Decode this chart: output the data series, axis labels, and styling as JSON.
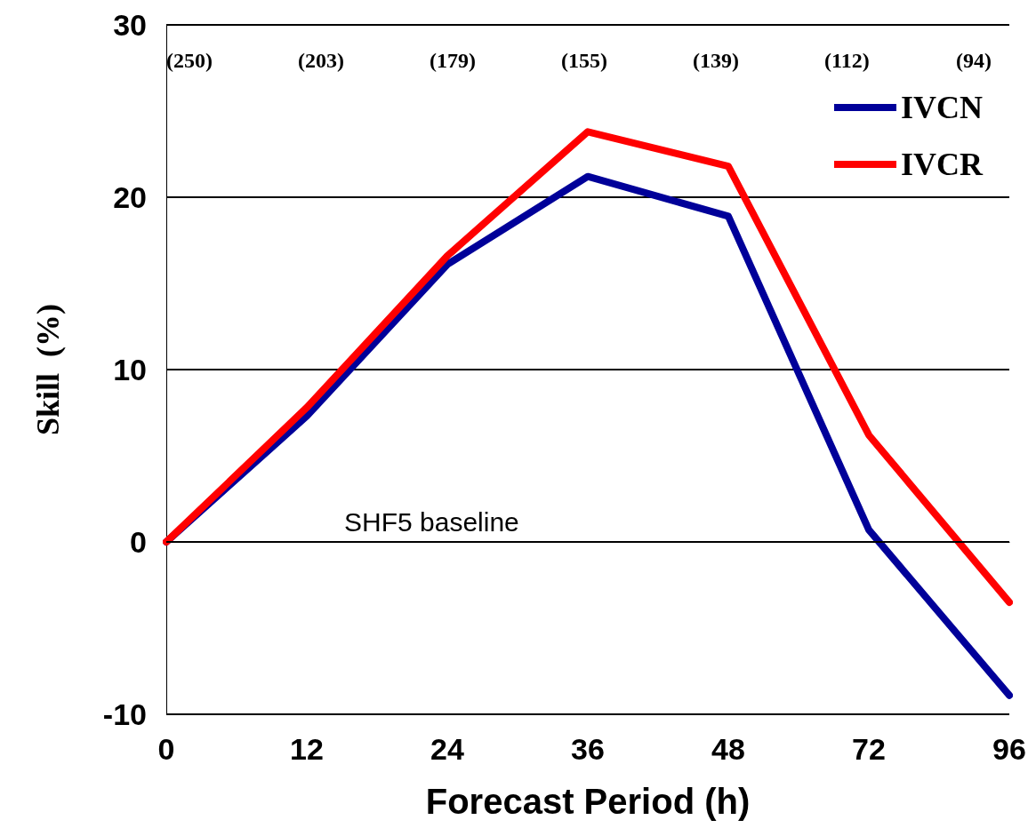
{
  "chart_data": {
    "type": "line",
    "xlabel": "Forecast Period (h)",
    "ylabel": "Skill  (%)",
    "categories": [
      "0",
      "12",
      "24",
      "36",
      "48",
      "72",
      "96"
    ],
    "series": [
      {
        "name": "IVCN",
        "color": "#000099",
        "values": [
          0,
          7.3,
          16.1,
          21.2,
          18.9,
          0.7,
          -8.9
        ]
      },
      {
        "name": "IVCR",
        "color": "#ff0000",
        "values": [
          0,
          7.8,
          16.6,
          23.8,
          21.8,
          6.2,
          -3.5
        ]
      }
    ],
    "ylim": [
      -10,
      30
    ],
    "yticks": [
      -10,
      0,
      10,
      20,
      30
    ],
    "grid": "y",
    "legend": "top right",
    "marker": "none",
    "line_style": "solid",
    "ref_lines": [
      {
        "axis": "y",
        "value": 0,
        "label": "SHF5 baseline"
      }
    ],
    "annotations": [
      "(250)",
      "(203)",
      "(179)",
      "(155)",
      "(139)",
      "(112)",
      "(94)"
    ]
  }
}
